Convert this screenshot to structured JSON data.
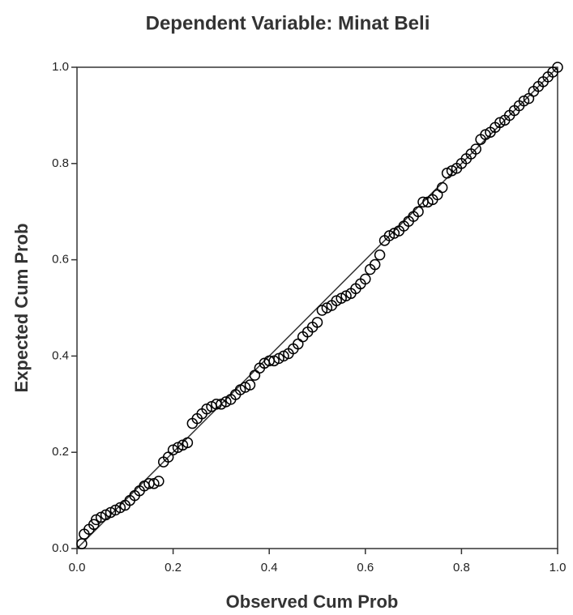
{
  "chart_data": {
    "type": "scatter",
    "title": "Dependent Variable: Minat Beli",
    "x_label": "Observed Cum Prob",
    "y_label": "Expected Cum Prob",
    "x": [
      0.01,
      0.015,
      0.025,
      0.035,
      0.04,
      0.05,
      0.06,
      0.07,
      0.08,
      0.09,
      0.1,
      0.11,
      0.12,
      0.13,
      0.14,
      0.15,
      0.16,
      0.17,
      0.18,
      0.19,
      0.2,
      0.21,
      0.22,
      0.23,
      0.24,
      0.25,
      0.26,
      0.27,
      0.28,
      0.29,
      0.3,
      0.31,
      0.32,
      0.33,
      0.34,
      0.35,
      0.36,
      0.37,
      0.38,
      0.39,
      0.4,
      0.41,
      0.42,
      0.43,
      0.44,
      0.45,
      0.46,
      0.47,
      0.48,
      0.49,
      0.5,
      0.51,
      0.52,
      0.53,
      0.54,
      0.55,
      0.56,
      0.57,
      0.58,
      0.59,
      0.6,
      0.61,
      0.62,
      0.63,
      0.64,
      0.65,
      0.66,
      0.67,
      0.68,
      0.69,
      0.7,
      0.71,
      0.72,
      0.73,
      0.74,
      0.75,
      0.76,
      0.77,
      0.78,
      0.79,
      0.8,
      0.81,
      0.82,
      0.83,
      0.84,
      0.85,
      0.86,
      0.87,
      0.88,
      0.89,
      0.9,
      0.91,
      0.92,
      0.93,
      0.94,
      0.95,
      0.96,
      0.97,
      0.98,
      0.99,
      1.0
    ],
    "values": [
      0.01,
      0.03,
      0.04,
      0.05,
      0.06,
      0.065,
      0.07,
      0.075,
      0.08,
      0.085,
      0.09,
      0.1,
      0.11,
      0.12,
      0.13,
      0.135,
      0.135,
      0.14,
      0.18,
      0.19,
      0.205,
      0.21,
      0.215,
      0.22,
      0.26,
      0.27,
      0.28,
      0.29,
      0.295,
      0.3,
      0.3,
      0.305,
      0.31,
      0.32,
      0.33,
      0.335,
      0.34,
      0.36,
      0.375,
      0.385,
      0.39,
      0.39,
      0.395,
      0.4,
      0.405,
      0.415,
      0.425,
      0.44,
      0.45,
      0.46,
      0.47,
      0.495,
      0.5,
      0.505,
      0.515,
      0.52,
      0.525,
      0.53,
      0.54,
      0.55,
      0.56,
      0.58,
      0.59,
      0.61,
      0.64,
      0.65,
      0.655,
      0.66,
      0.67,
      0.68,
      0.69,
      0.7,
      0.72,
      0.72,
      0.725,
      0.735,
      0.75,
      0.78,
      0.785,
      0.79,
      0.8,
      0.81,
      0.82,
      0.83,
      0.85,
      0.86,
      0.865,
      0.875,
      0.885,
      0.89,
      0.9,
      0.91,
      0.92,
      0.93,
      0.935,
      0.95,
      0.96,
      0.97,
      0.98,
      0.99,
      1.0
    ],
    "color": "#000000",
    "xlim": [
      0,
      1
    ],
    "ylim": [
      0,
      1
    ],
    "xticks": [
      {
        "value": 0,
        "label": "0.0"
      },
      0.2,
      0.4,
      0.6,
      0.8,
      {
        "value": 1,
        "label": "1.0"
      }
    ],
    "yticks": [
      {
        "value": 0,
        "label": "0.0"
      },
      0.2,
      0.4,
      0.6,
      0.8,
      {
        "value": 1,
        "label": "1.0"
      }
    ],
    "grid": false
  }
}
